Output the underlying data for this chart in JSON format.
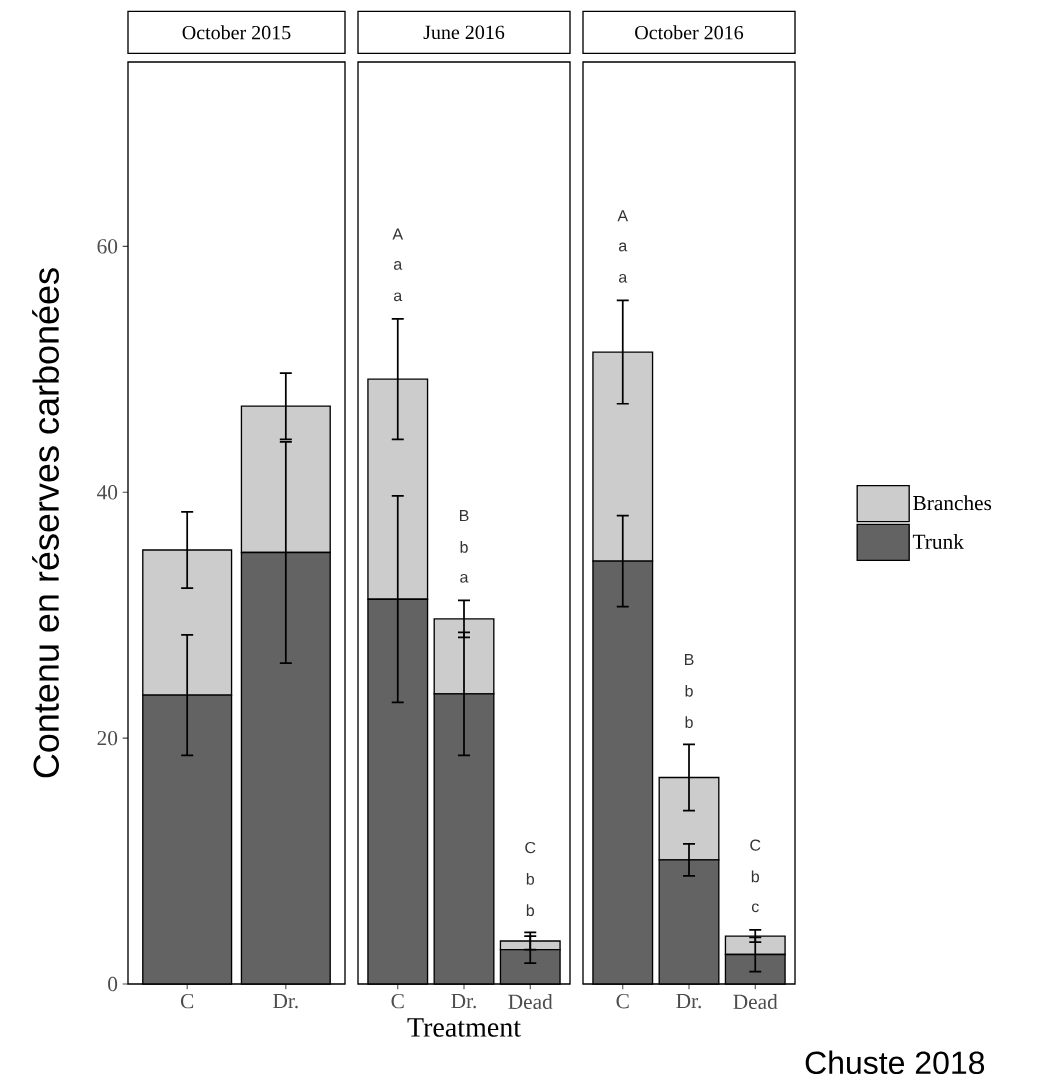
{
  "chart_data": [
    {
      "type": "bar",
      "title": "October 2015",
      "ylabel": "Contenu en réserves carbonées",
      "categories": [
        "C",
        "Dr."
      ],
      "stacked": true,
      "ylim": [
        0,
        75
      ],
      "yticks": [
        0,
        20,
        40,
        60
      ],
      "series": [
        {
          "color": "#636363",
          "values": [
            23.5,
            35.1
          ],
          "errors": [
            4.9,
            9.0
          ]
        },
        {
          "color": "#cccccc",
          "values": [
            11.8,
            11.9
          ],
          "errors": [
            3.1,
            2.7
          ]
        }
      ]
    },
    {
      "type": "bar",
      "title": "June 2016",
      "xlabel": "Treatment",
      "categories": [
        "C",
        "Dr.",
        "Dead"
      ],
      "stacked": true,
      "ylim": [
        0,
        75
      ],
      "tick_labels": "x",
      "series": [
        {
          "color": "#636363",
          "values": [
            31.3,
            23.6,
            2.8
          ],
          "errors": [
            8.4,
            5.0,
            1.1
          ]
        },
        {
          "color": "#cccccc",
          "values": [
            17.9,
            6.1,
            0.7
          ],
          "errors": [
            4.9,
            1.5,
            0.7
          ]
        }
      ],
      "annotations": [
        "A",
        "a",
        "a",
        "B",
        "b",
        "a",
        "C",
        "b",
        "b"
      ]
    },
    {
      "type": "bar",
      "title": "October 2016",
      "categories": [
        "C",
        "Dr.",
        "Dead"
      ],
      "stacked": true,
      "ylim": [
        0,
        75
      ],
      "tick_labels": "x",
      "legend": "right",
      "series": [
        {
          "name": "Trunk",
          "color": "#636363",
          "values": [
            34.4,
            10.1,
            2.4
          ],
          "errors": [
            3.7,
            1.3,
            1.4
          ]
        },
        {
          "name": "Branches",
          "color": "#cccccc",
          "values": [
            17.0,
            6.7,
            1.5
          ],
          "errors": [
            4.2,
            2.7,
            0.5
          ]
        }
      ],
      "annotations": [
        "A",
        "a",
        "a",
        "B",
        "b",
        "b",
        "C",
        "b",
        "c",
        "Chuste 2018"
      ]
    }
  ]
}
